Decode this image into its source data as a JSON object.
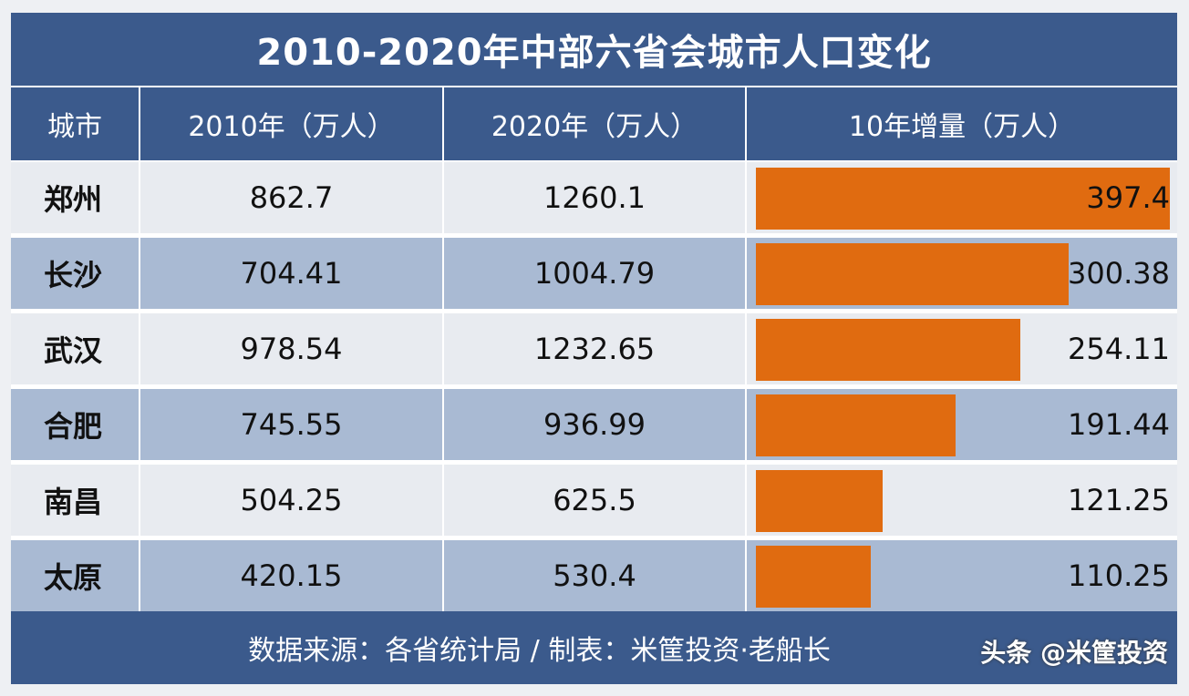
{
  "title": "2010-2020年中部六省会城市人口变化",
  "headers": {
    "city": "城市",
    "y2010": "2010年（万人）",
    "y2020": "2020年（万人）",
    "increase": "10年增量（万人）"
  },
  "colors": {
    "header_bg": "#3b5a8c",
    "row_light": "#e8ebf0",
    "row_dark": "#a9bad3",
    "bar": "#e06b10"
  },
  "chart_data": {
    "type": "table",
    "title": "2010-2020年中部六省会城市人口变化",
    "columns": [
      "城市",
      "2010年（万人）",
      "2020年（万人）",
      "10年增量（万人）"
    ],
    "rows": [
      {
        "city": "郑州",
        "y2010": "862.7",
        "y2020": "1260.1",
        "increase": "397.4"
      },
      {
        "city": "长沙",
        "y2010": "704.41",
        "y2020": "1004.79",
        "increase": "300.38"
      },
      {
        "city": "武汉",
        "y2010": "978.54",
        "y2020": "1232.65",
        "increase": "254.11"
      },
      {
        "city": "合肥",
        "y2010": "745.55",
        "y2020": "936.99",
        "increase": "191.44"
      },
      {
        "city": "南昌",
        "y2010": "504.25",
        "y2020": "625.5",
        "increase": "121.25"
      },
      {
        "city": "太原",
        "y2010": "420.15",
        "y2020": "530.4",
        "increase": "110.25"
      }
    ],
    "bar_series": {
      "name": "10年增量（万人）",
      "max": 397.4
    }
  },
  "footer": "数据来源：各省统计局 / 制表：米筐投资·老船长",
  "watermark": "头条 @米筐投资"
}
